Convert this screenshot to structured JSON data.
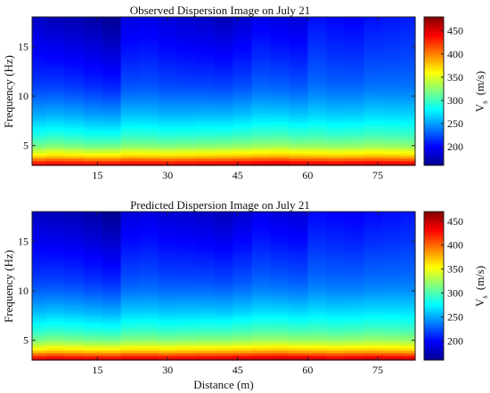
{
  "chart_data": [
    {
      "type": "heatmap",
      "title": "Observed Dispersion Image on July 21",
      "xlabel": "",
      "ylabel": "Frequency (Hz)",
      "xlim": [
        1,
        83
      ],
      "ylim": [
        3,
        18
      ],
      "x_ticks": [
        15,
        30,
        45,
        60,
        75
      ],
      "y_ticks": [
        5,
        10,
        15
      ],
      "colorbar": {
        "label_main": "V",
        "label_sub": "s",
        "label_unit": "(m/s)",
        "range": [
          160,
          480
        ],
        "ticks": [
          200,
          250,
          300,
          350,
          400,
          450
        ],
        "colormap": "jet"
      },
      "profile": {
        "freq": [
          3,
          4,
          5,
          6,
          7,
          8,
          9,
          10,
          11,
          12,
          13,
          14,
          15,
          16,
          17,
          18
        ],
        "vs": [
          460,
          370,
          320,
          295,
          278,
          262,
          250,
          238,
          228,
          222,
          217,
          212,
          208,
          204,
          200,
          196
        ]
      },
      "lateral_columns": {
        "x": [
          2,
          6,
          10,
          14,
          18,
          22,
          26,
          30,
          34,
          38,
          42,
          46,
          50,
          54,
          58,
          62,
          66,
          70,
          74,
          78,
          82
        ],
        "offset_low": [
          -2,
          3,
          0,
          -3,
          -2,
          3,
          2,
          0,
          2,
          4,
          6,
          8,
          10,
          12,
          8,
          6,
          4,
          6,
          8,
          6,
          4
        ],
        "offset_high": [
          -14,
          -18,
          -20,
          -24,
          -30,
          -6,
          -4,
          -8,
          -12,
          -14,
          -18,
          -12,
          -2,
          -6,
          -8,
          8,
          4,
          2,
          8,
          10,
          12
        ]
      }
    },
    {
      "type": "heatmap",
      "title": "Predicted Dispersion Image on July 21",
      "xlabel": "Distance (m)",
      "ylabel": "Frequency (Hz)",
      "xlim": [
        1,
        83
      ],
      "ylim": [
        3,
        18
      ],
      "x_ticks": [
        15,
        30,
        45,
        60,
        75
      ],
      "y_ticks": [
        5,
        10,
        15
      ],
      "colorbar": {
        "label_main": "V",
        "label_sub": "s",
        "label_unit": "(m/s)",
        "range": [
          160,
          470
        ],
        "ticks": [
          200,
          250,
          300,
          350,
          400,
          450
        ],
        "colormap": "jet"
      },
      "profile": {
        "freq": [
          3,
          4,
          5,
          6,
          7,
          8,
          9,
          10,
          11,
          12,
          13,
          14,
          15,
          16,
          17,
          18
        ],
        "vs": [
          455,
          365,
          318,
          293,
          276,
          260,
          248,
          236,
          227,
          221,
          216,
          211,
          206,
          202,
          198,
          194
        ]
      },
      "lateral_columns": {
        "x": [
          2,
          6,
          10,
          14,
          18,
          22,
          26,
          30,
          34,
          38,
          42,
          46,
          50,
          54,
          58,
          62,
          66,
          70,
          74,
          78,
          82
        ],
        "offset_low": [
          -2,
          2,
          0,
          -2,
          -2,
          2,
          2,
          0,
          2,
          4,
          5,
          7,
          9,
          10,
          8,
          6,
          4,
          6,
          7,
          6,
          4
        ],
        "offset_high": [
          -14,
          -16,
          -18,
          -22,
          -28,
          -6,
          -4,
          -8,
          -10,
          -12,
          -16,
          -10,
          -2,
          -6,
          -8,
          6,
          4,
          2,
          6,
          8,
          10
        ]
      }
    }
  ]
}
